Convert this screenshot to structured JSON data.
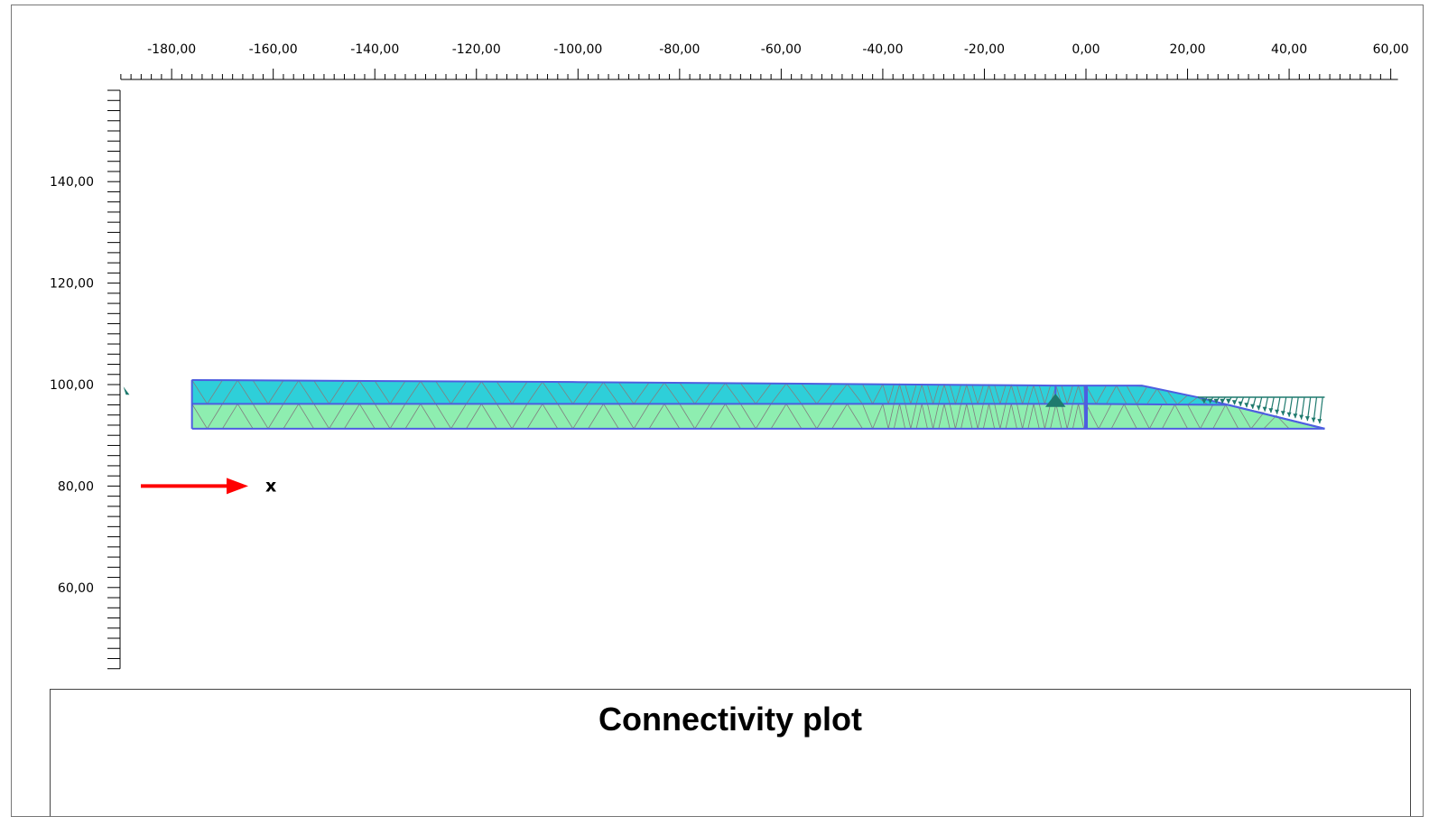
{
  "x_axis": {
    "labels": [
      "-180,00",
      "-160,00",
      "-140,00",
      "-120,00",
      "-100,00",
      "-80,00",
      "-60,00",
      "-40,00",
      "-20,00",
      "0,00",
      "20,00",
      "40,00",
      "60,00"
    ],
    "values": [
      -180,
      -160,
      -140,
      -120,
      -100,
      -80,
      -60,
      -40,
      -20,
      0,
      20,
      40,
      60
    ],
    "range": [
      -190,
      66
    ]
  },
  "y_axis": {
    "labels": [
      "140,00",
      "120,00",
      "100,00",
      "80,00",
      "60,00"
    ],
    "values": [
      140,
      120,
      100,
      80,
      60
    ],
    "range": [
      44,
      158
    ]
  },
  "axis_indicator": {
    "label": "x",
    "color": "#ff0000"
  },
  "model": {
    "upper_layer_color": "#2ecfd9",
    "lower_layer_color": "#8eeeb0",
    "outline_color": "#4e5ee0",
    "mesh_color": "#808080",
    "load_color": "#1f7a6e",
    "upper_top": [
      [
        -176,
        100.9
      ],
      [
        -100,
        100.5
      ],
      [
        -6,
        99.8
      ],
      [
        11,
        99.8
      ],
      [
        22,
        97.5
      ]
    ],
    "interface": [
      [
        -176,
        96.2
      ],
      [
        -6,
        96.2
      ],
      [
        0,
        96.2
      ],
      [
        28,
        96.0
      ],
      [
        47,
        91.8
      ]
    ],
    "bottom": [
      [
        -176,
        91.3
      ],
      [
        47,
        91.3
      ]
    ],
    "wall_x": 0,
    "load_x": [
      22,
      47
    ],
    "load_top": 97.5
  },
  "caption": {
    "title": "Connectivity plot"
  }
}
